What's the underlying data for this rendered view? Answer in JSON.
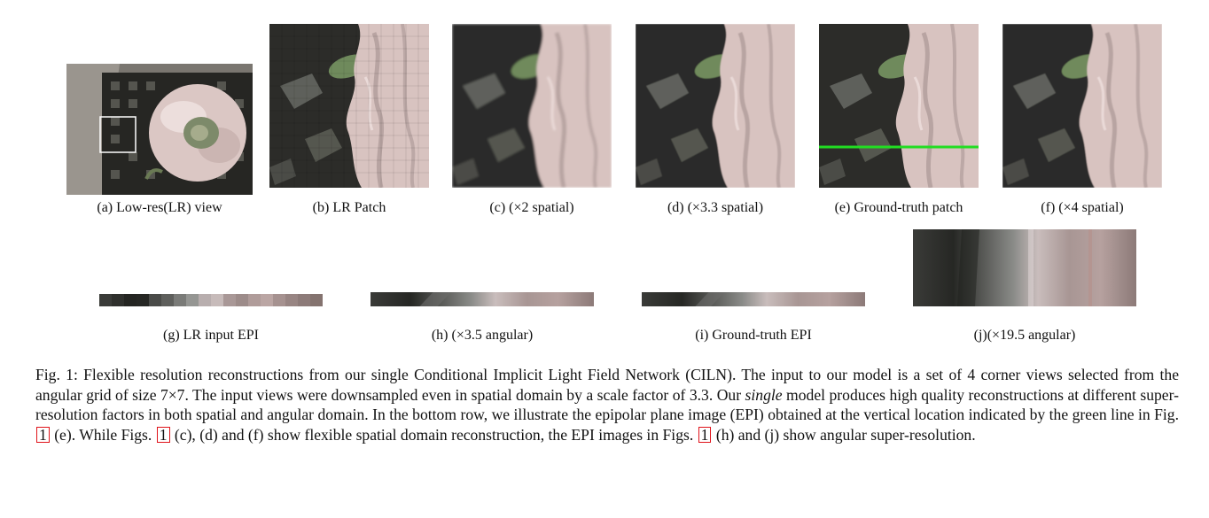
{
  "figure": {
    "top_row": [
      {
        "id": "a",
        "label": "(a) Low-res(LR) view"
      },
      {
        "id": "b",
        "label": "(b) LR Patch"
      },
      {
        "id": "c",
        "label": "(c) (×2 spatial)"
      },
      {
        "id": "d",
        "label": "(d) (×3.3 spatial)"
      },
      {
        "id": "e",
        "label": "(e) Ground-truth patch"
      },
      {
        "id": "f",
        "label": "(f) (×4 spatial)"
      }
    ],
    "bottom_row": [
      {
        "id": "g",
        "label": "(g) LR input EPI"
      },
      {
        "id": "h",
        "label": "(h) (×3.5 angular)"
      },
      {
        "id": "i",
        "label": "(i) Ground-truth EPI"
      },
      {
        "id": "j",
        "label": "(j)(×19.5 angular)"
      }
    ],
    "colors": {
      "green_line": "#22dd22",
      "ref_box": "#e0131a",
      "petal": "#d9c2c0",
      "background": "#2b2b28"
    }
  },
  "caption": {
    "prefix": "Fig. 1: Flexible resolution reconstructions from our single Conditional Implicit Light Field Network (CILN). The input to our model is a set of 4 corner views selected from the angular grid of size 7×7. The input views were downsampled even in spatial domain by a scale factor of 3.3. Our ",
    "emph": "single",
    "mid": " model produces high quality reconstructions at different super-resolution factors in both spatial and angular domain. In the bottom row, we illustrate the epipolar plane image (EPI) obtained at the vertical location indicated by the green line in Fig.",
    "ref": "1",
    "part_e": " (e). While Figs. ",
    "part_cdf": " (c), (d) and (f) show flexible spatial domain reconstruction, the EPI images in Figs. ",
    "part_end": " (h) and (j) show angular super-resolution."
  }
}
